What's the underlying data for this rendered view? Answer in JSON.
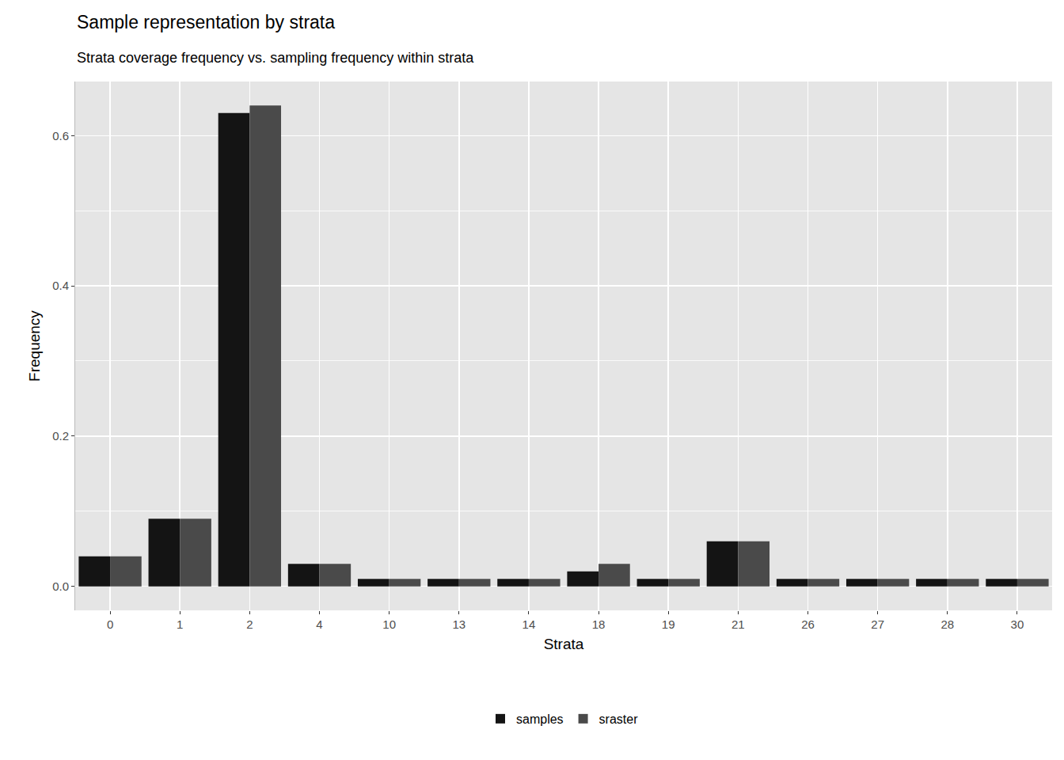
{
  "chart_data": {
    "type": "bar",
    "title": "Sample representation by strata",
    "subtitle": "Strata coverage frequency vs. sampling frequency within strata",
    "x_label": "Strata",
    "y_label": "Frequency",
    "categories": [
      "0",
      "1",
      "2",
      "4",
      "10",
      "13",
      "14",
      "18",
      "19",
      "21",
      "26",
      "27",
      "28",
      "30"
    ],
    "series": [
      {
        "name": "samples",
        "color": "#141414",
        "values": [
          0.04,
          0.09,
          0.63,
          0.03,
          0.01,
          0.01,
          0.01,
          0.02,
          0.01,
          0.06,
          0.01,
          0.01,
          0.01,
          0.01
        ]
      },
      {
        "name": "sraster",
        "color": "#4a4a4a",
        "values": [
          0.04,
          0.09,
          0.64,
          0.03,
          0.01,
          0.01,
          0.01,
          0.03,
          0.01,
          0.06,
          0.01,
          0.01,
          0.01,
          0.01
        ]
      }
    ],
    "ylim": [
      -0.032,
      0.672
    ],
    "yticks": [
      {
        "value": 0,
        "label": "0.0"
      },
      {
        "value": 0.2,
        "label": "0.2"
      },
      {
        "value": 0.4,
        "label": "0.4"
      },
      {
        "value": 0.6,
        "label": "0.6"
      }
    ],
    "grid": true,
    "legend": "bottom"
  }
}
